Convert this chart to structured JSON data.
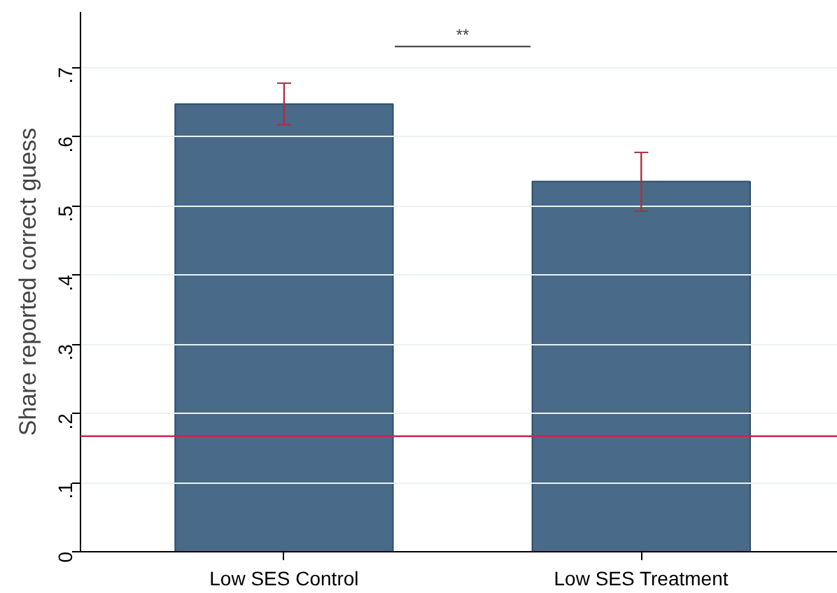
{
  "chart_data": {
    "type": "bar",
    "ylabel": "Share reported correct guess",
    "categories": [
      "Low SES Control",
      "Low SES Treatment"
    ],
    "values": [
      0.647,
      0.535
    ],
    "errors": [
      [
        0.617,
        0.677
      ],
      [
        0.492,
        0.577
      ]
    ],
    "color": "#4a6a8a",
    "ylim": [
      0,
      0.78
    ],
    "yticks": [
      {
        "value": 0,
        "label": "0"
      },
      {
        "value": 0.1,
        "label": ".1"
      },
      {
        "value": 0.2,
        "label": ".2"
      },
      {
        "value": 0.3,
        "label": ".3"
      },
      {
        "value": 0.4,
        "label": ".4"
      },
      {
        "value": 0.5,
        "label": ".5"
      },
      {
        "value": 0.6,
        "label": ".6"
      },
      {
        "value": 0.7,
        "label": ".7"
      }
    ],
    "grid": "y",
    "ref_lines": [
      {
        "axis": "y",
        "value": 0.167,
        "color": "#c8284e"
      }
    ],
    "annotations": [
      "**"
    ]
  }
}
